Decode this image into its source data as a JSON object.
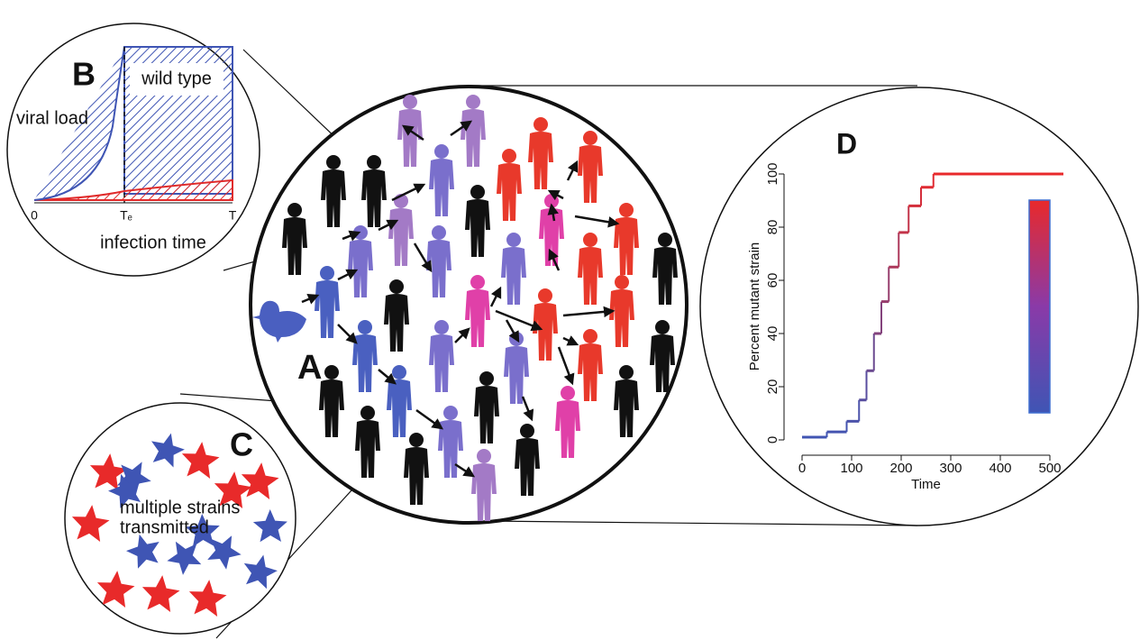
{
  "panel_b": {
    "letter": "B",
    "legend": "wild type",
    "y_label": "viral load",
    "x_label": "infection time",
    "ticks": [
      "0",
      "Tₑ",
      "T"
    ]
  },
  "panel_a": {
    "letter": "A"
  },
  "panel_c": {
    "letter": "C",
    "text": [
      "multiple strains",
      "transmitted"
    ]
  },
  "panel_d": {
    "letter": "D",
    "chart_data": {
      "type": "step",
      "xlabel": "Time",
      "ylabel": "Percent mutant strain",
      "xlim": [
        0,
        500
      ],
      "ylim": [
        0,
        100
      ],
      "xticks": [
        0,
        100,
        200,
        300,
        400,
        500
      ],
      "yticks": [
        0,
        20,
        40,
        60,
        80,
        100
      ],
      "colors": [
        "#3f55b4",
        "#e8292b"
      ],
      "x": [
        0,
        50,
        90,
        115,
        130,
        145,
        160,
        175,
        195,
        215,
        240,
        265,
        520
      ],
      "values": [
        1,
        3,
        7,
        15,
        26,
        40,
        52,
        65,
        78,
        88,
        95,
        100,
        100
      ]
    }
  }
}
